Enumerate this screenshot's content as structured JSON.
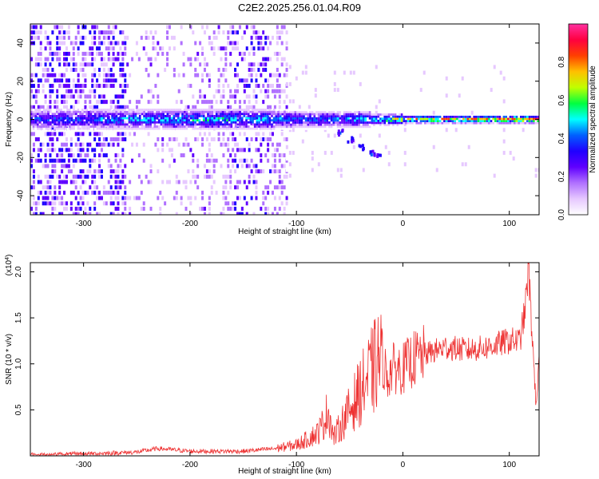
{
  "title": "C2E2.2025.256.01.04.R09",
  "chart_data": [
    {
      "type": "heatmap",
      "xlabel": "Height of straight line (km)",
      "ylabel": "Frequency (Hz)",
      "xlim": [
        -350,
        128
      ],
      "ylim": [
        -50,
        50
      ],
      "xticks": [
        -300,
        -200,
        -100,
        0,
        100
      ],
      "yticks": [
        -40,
        -20,
        0,
        20,
        40
      ],
      "colorbar": {
        "label": "Normalized spectral amplitude",
        "range": [
          0,
          1
        ],
        "ticks": [
          "0.0",
          "0.2",
          "0.4",
          "0.6",
          "0.8"
        ],
        "colors": [
          "#ffffff",
          "#e6c8ff",
          "#b070ff",
          "#6000ff",
          "#2000ff",
          "#0060ff",
          "#00ffff",
          "#00ff40",
          "#c0ff00",
          "#ffc000",
          "#ff4000",
          "#ff0040",
          "#ff30a0"
        ]
      },
      "series": [
        {
          "name": "centerline amplitude",
          "x": [
            -340,
            -300,
            -250,
            -200,
            -150,
            -110,
            -90,
            -70,
            -50,
            -30,
            -10,
            0,
            20,
            50,
            80,
            100,
            120
          ],
          "y": [
            0.42,
            0.45,
            0.5,
            0.55,
            0.55,
            0.5,
            0.45,
            0.45,
            0.48,
            0.55,
            0.7,
            0.75,
            0.82,
            0.85,
            0.88,
            0.9,
            0.92
          ]
        },
        {
          "name": "drifting branch",
          "x": [
            -60,
            -50,
            -40,
            -30,
            -25
          ],
          "y": [
            -6,
            -10,
            -14,
            -17,
            -18
          ]
        }
      ]
    },
    {
      "type": "line",
      "xlabel": "Height of straight line (km)",
      "ylabel": "SNR (10 * v/v)",
      "yscale_label": "(x10",
      "yscale_exp": "4",
      "xlim": [
        -350,
        128
      ],
      "ylim": [
        0,
        2.1
      ],
      "xticks": [
        -300,
        -200,
        -100,
        0,
        100
      ],
      "yticks": [
        "0.5",
        "1.0",
        "1.5",
        "2.0"
      ],
      "color": "#ee3333",
      "series": [
        {
          "name": "SNR",
          "x": [
            -350,
            -300,
            -250,
            -230,
            -200,
            -150,
            -120,
            -100,
            -90,
            -80,
            -75,
            -70,
            -65,
            -60,
            -50,
            -40,
            -30,
            -20,
            -15,
            -10,
            0,
            10,
            20,
            40,
            60,
            80,
            100,
            110,
            115,
            118,
            120,
            123,
            125,
            128
          ],
          "y": [
            0.01,
            0.02,
            0.04,
            0.08,
            0.05,
            0.05,
            0.08,
            0.12,
            0.18,
            0.25,
            0.35,
            0.5,
            0.2,
            0.3,
            0.5,
            0.7,
            0.9,
            1.1,
            0.85,
            0.95,
            0.95,
            1.05,
            1.1,
            1.18,
            1.15,
            1.18,
            1.25,
            1.25,
            1.6,
            2.05,
            1.6,
            1.0,
            0.55,
            1.0
          ]
        }
      ]
    }
  ]
}
